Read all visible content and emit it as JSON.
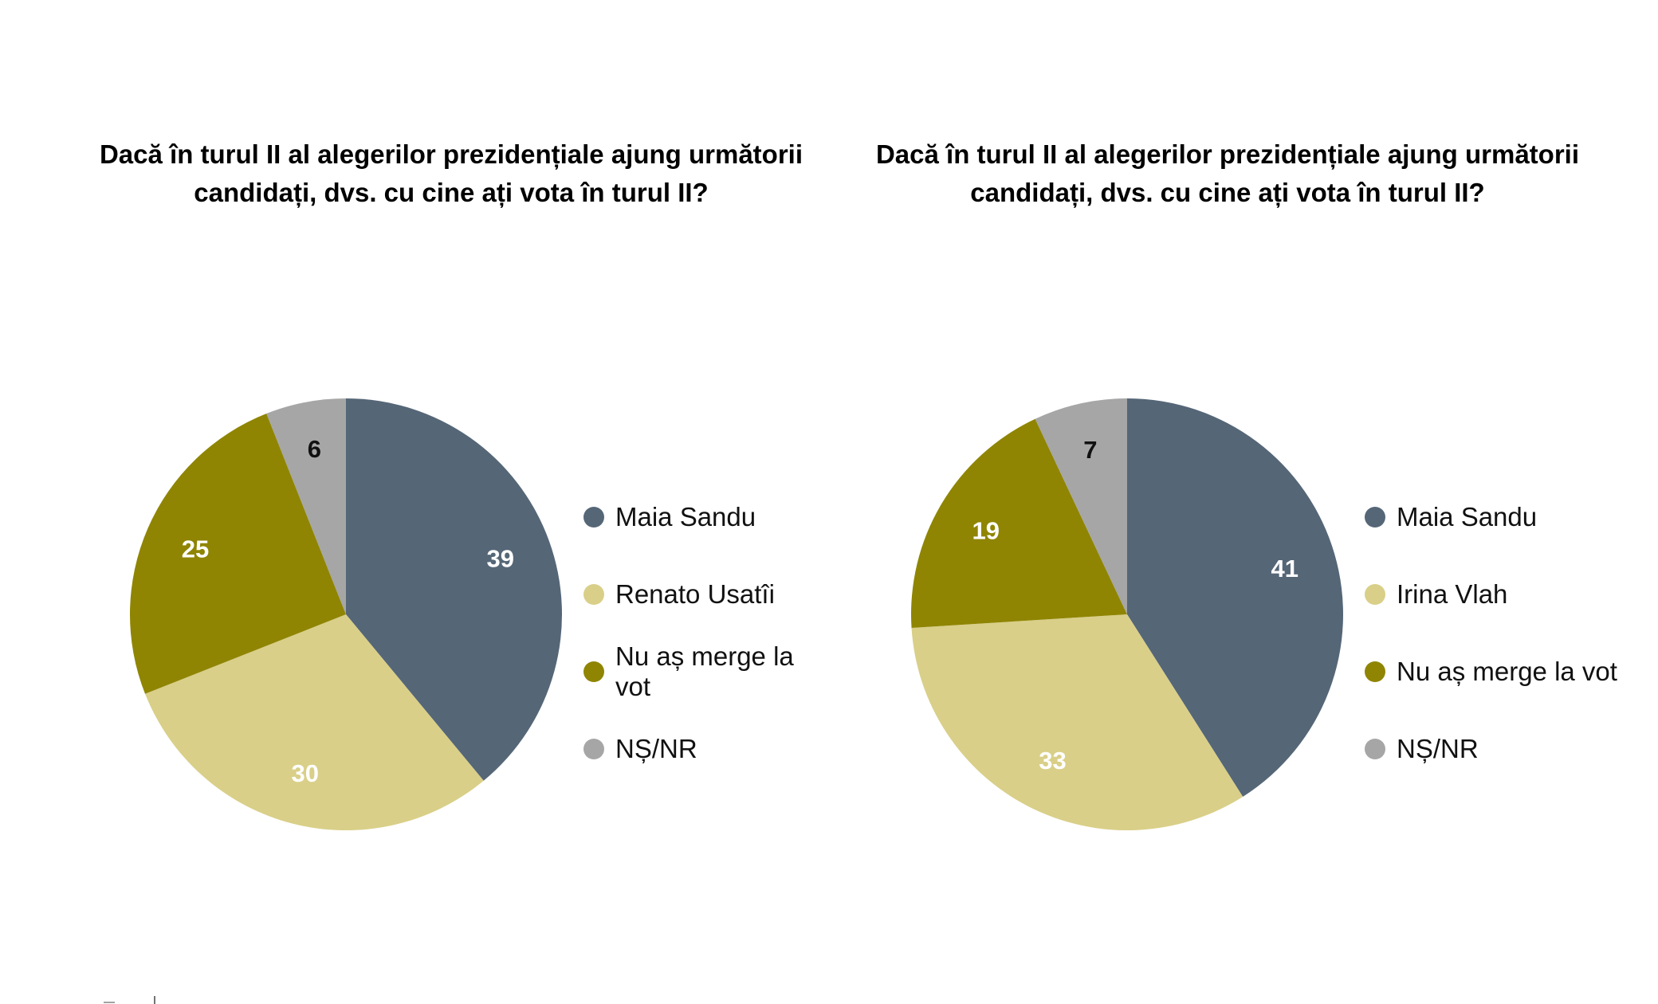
{
  "chart_data": [
    {
      "type": "pie",
      "title": "Dacă în turul II al alegerilor prezidențiale ajung următorii candidați, dvs. cu cine ați vota în turul II?",
      "categories": [
        "Maia Sandu",
        "Renato Usatîi",
        "Nu aș merge la vot",
        "NȘ/NR"
      ],
      "values": [
        39,
        30,
        25,
        6
      ],
      "colors": [
        "#556677",
        "#d9cf88",
        "#8f8503",
        "#a6a6a6"
      ],
      "label_colors": [
        "#ffffff",
        "#ffffff",
        "#ffffff",
        "#111111"
      ],
      "legend_position": "right"
    },
    {
      "type": "pie",
      "title": "Dacă în turul II al alegerilor prezidențiale ajung următorii candidați, dvs. cu cine ați vota în turul II?",
      "categories": [
        "Maia Sandu",
        "Irina Vlah",
        "Nu aș merge la vot",
        "NȘ/NR"
      ],
      "values": [
        41,
        33,
        19,
        7
      ],
      "colors": [
        "#556677",
        "#d9cf88",
        "#8f8503",
        "#a6a6a6"
      ],
      "label_colors": [
        "#ffffff",
        "#ffffff",
        "#ffffff",
        "#111111"
      ],
      "legend_position": "right"
    }
  ]
}
